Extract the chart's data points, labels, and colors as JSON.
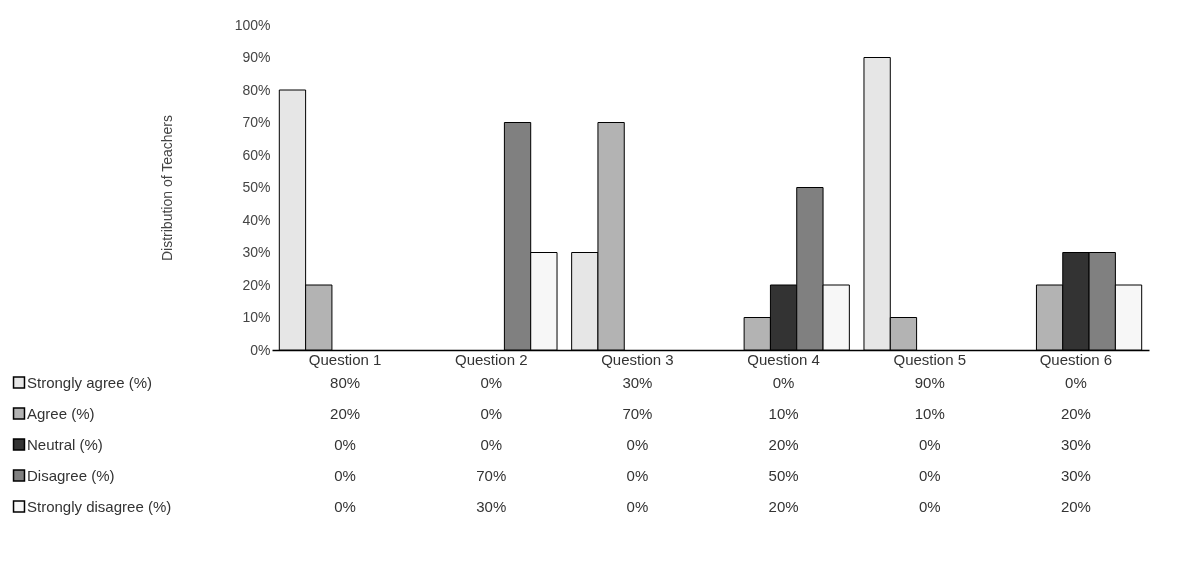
{
  "chart_data": {
    "type": "bar",
    "ylabel": "Distribution of Teachers",
    "categories": [
      "Question 1",
      "Question 2",
      "Question 3",
      "Question 4",
      "Question 5",
      "Question 6"
    ],
    "series": [
      {
        "name": "Strongly agree (%)",
        "color": "#e6e6e6",
        "values": [
          80,
          0,
          30,
          0,
          90,
          0
        ],
        "value_labels": [
          "80%",
          "0%",
          "30%",
          "0%",
          "90%",
          "0%"
        ]
      },
      {
        "name": "Agree (%)",
        "color": "#b3b3b3",
        "values": [
          20,
          0,
          70,
          10,
          10,
          20
        ],
        "value_labels": [
          "20%",
          "0%",
          "70%",
          "10%",
          "10%",
          "20%"
        ]
      },
      {
        "name": "Neutral (%)",
        "color": "#333333",
        "values": [
          0,
          0,
          0,
          20,
          0,
          30
        ],
        "value_labels": [
          "0%",
          "0%",
          "0%",
          "20%",
          "0%",
          "30%"
        ]
      },
      {
        "name": "Disagree (%)",
        "color": "#808080",
        "values": [
          0,
          70,
          0,
          50,
          0,
          30
        ],
        "value_labels": [
          "0%",
          "70%",
          "0%",
          "50%",
          "0%",
          "30%"
        ]
      },
      {
        "name": "Strongly disagree (%)",
        "color": "#f7f7f7",
        "values": [
          0,
          30,
          0,
          20,
          0,
          20
        ],
        "value_labels": [
          "0%",
          "30%",
          "0%",
          "20%",
          "0%",
          "20%"
        ]
      }
    ],
    "ylim": [
      0,
      100
    ],
    "yticks": [
      {
        "value": 0,
        "label": "0%"
      },
      {
        "value": 10,
        "label": "10%"
      },
      {
        "value": 20,
        "label": "20%"
      },
      {
        "value": 30,
        "label": "30%"
      },
      {
        "value": 40,
        "label": "40%"
      },
      {
        "value": 50,
        "label": "50%"
      },
      {
        "value": 60,
        "label": "60%"
      },
      {
        "value": 70,
        "label": "70%"
      },
      {
        "value": 80,
        "label": "80%"
      },
      {
        "value": 90,
        "label": "90%"
      },
      {
        "value": 100,
        "label": "100%"
      }
    ],
    "grid": false,
    "legend": "bottom"
  }
}
